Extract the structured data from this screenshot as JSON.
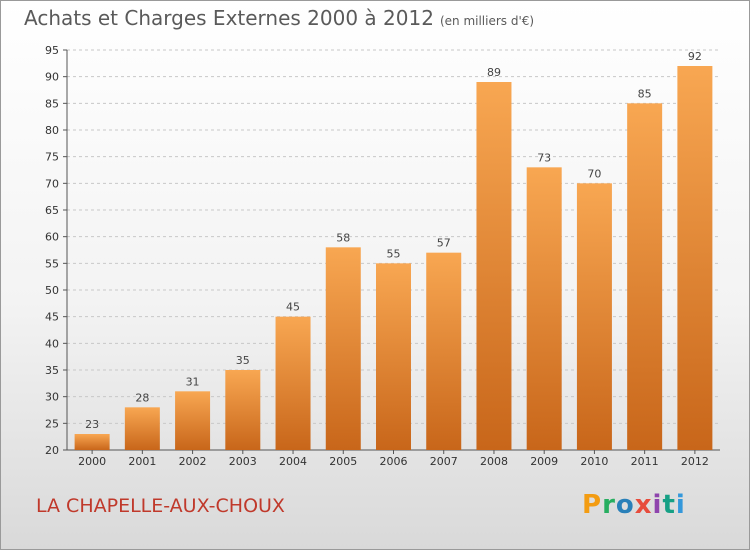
{
  "header": {
    "title": "Achats et Charges Externes 2000 à 2012",
    "subtitle": "(en milliers d'€)"
  },
  "footer": {
    "place": "LA CHAPELLE-AUX-CHOUX",
    "logo": "Proxiti"
  },
  "chart_data": {
    "type": "bar",
    "title": "Achats et Charges Externes 2000 à 2012",
    "subtitle": "(en milliers d'€)",
    "xlabel": "",
    "ylabel": "",
    "categories": [
      "2000",
      "2001",
      "2002",
      "2003",
      "2004",
      "2005",
      "2006",
      "2007",
      "2008",
      "2009",
      "2010",
      "2011",
      "2012"
    ],
    "values": [
      23,
      28,
      31,
      35,
      45,
      58,
      55,
      57,
      89,
      73,
      70,
      85,
      92
    ],
    "ylim": [
      20,
      95
    ],
    "yticks": [
      20,
      25,
      30,
      35,
      40,
      45,
      50,
      55,
      60,
      65,
      70,
      75,
      80,
      85,
      90,
      95
    ],
    "grid": true,
    "colors": {
      "bar_top": "#f8a752",
      "bar_bottom": "#c8661a",
      "grid": "#c8c8c8",
      "accent": "#c0392b"
    }
  }
}
